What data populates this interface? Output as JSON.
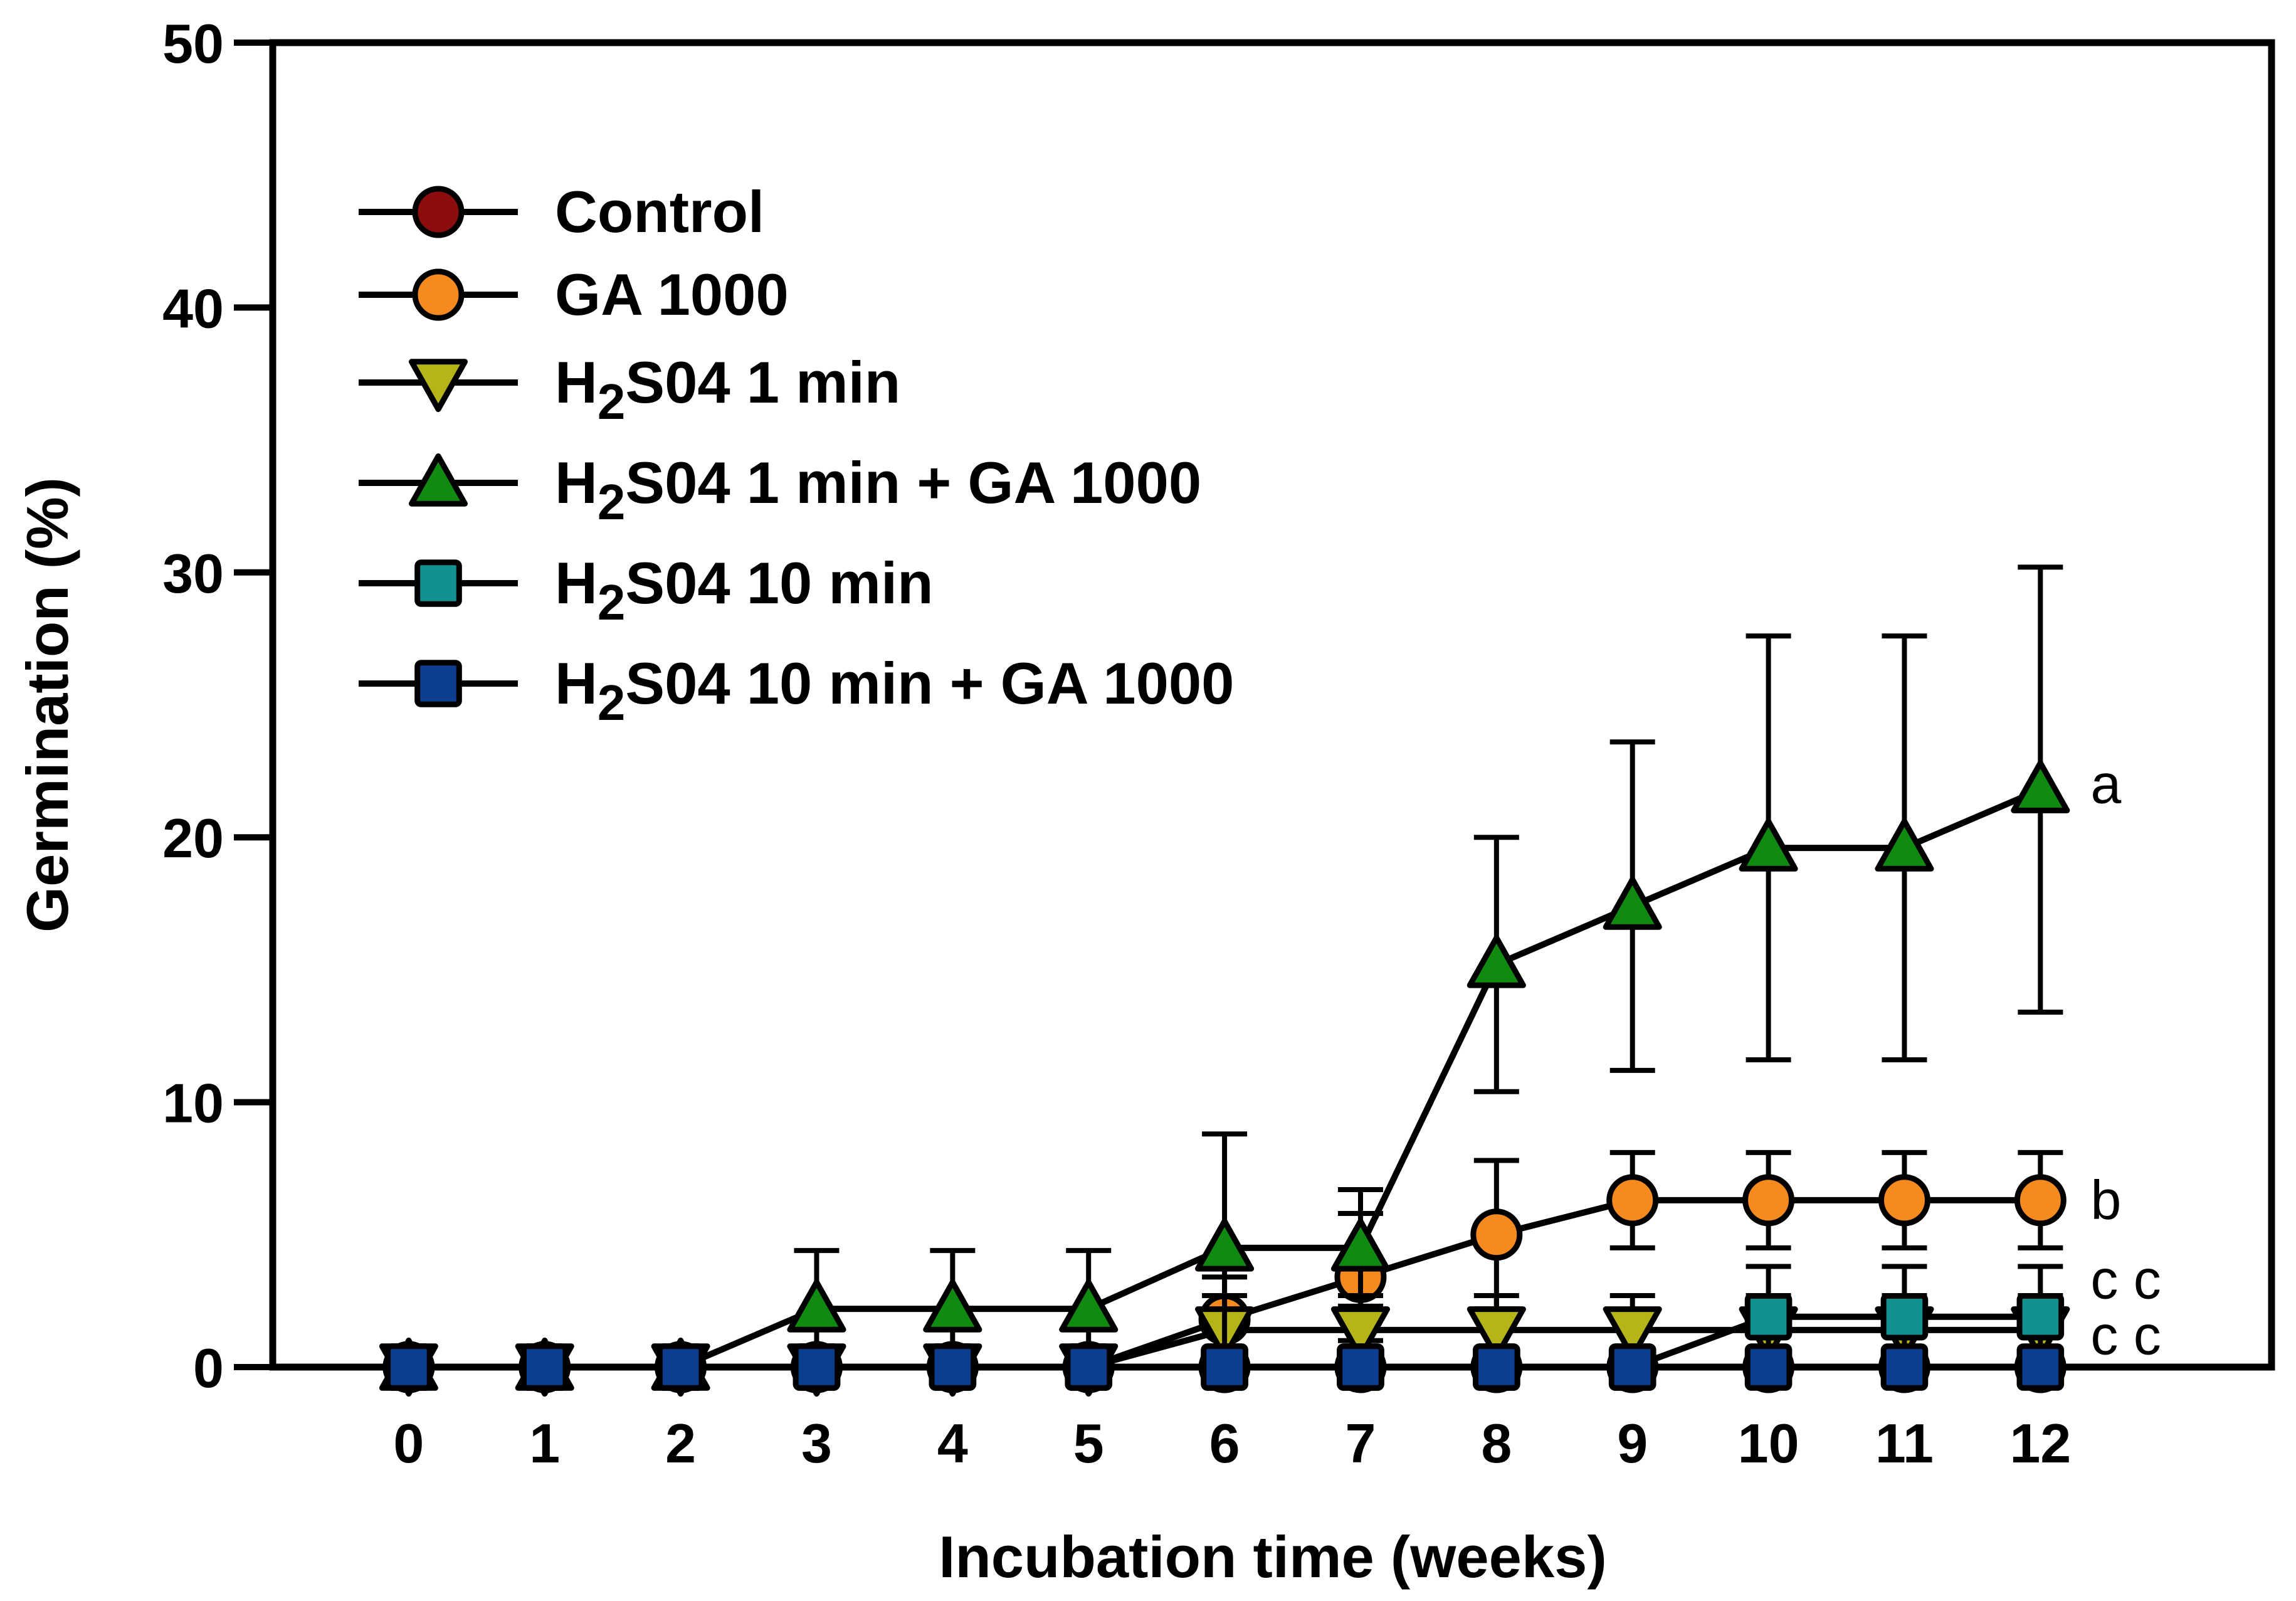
{
  "chart_data": {
    "type": "line",
    "title": "",
    "xlabel": "Incubation time (weeks)",
    "ylabel": "Germination (%)",
    "x": [
      0,
      1,
      2,
      3,
      4,
      5,
      6,
      7,
      8,
      9,
      10,
      11,
      12
    ],
    "xlim": [
      -1,
      13.7
    ],
    "ylim": [
      0,
      50
    ],
    "xticks": [
      "0",
      "1",
      "2",
      "3",
      "4",
      "5",
      "6",
      "7",
      "8",
      "9",
      "10",
      "11",
      "12"
    ],
    "yticks": [
      "0",
      "10",
      "20",
      "30",
      "40",
      "50"
    ],
    "grid": false,
    "legend_position": "top-left",
    "series": [
      {
        "name": "Control",
        "legend_main": "Control",
        "legend_sub": "",
        "legend_rest": "",
        "marker": "circle",
        "color": "#8b0d0d",
        "values": [
          0,
          0,
          0,
          0,
          0,
          0,
          0,
          0,
          0,
          0,
          0,
          0,
          0
        ],
        "errors": [
          0,
          0,
          0,
          0,
          0,
          0,
          0,
          0,
          0,
          0,
          0,
          0,
          0
        ]
      },
      {
        "name": "GA 1000",
        "legend_main": "GA 1000",
        "legend_sub": "",
        "legend_rest": "",
        "marker": "circle",
        "color": "#f58a1f",
        "values": [
          0,
          0,
          0,
          0,
          0,
          0,
          1.8,
          3.4,
          5.0,
          6.3,
          6.3,
          6.3,
          6.3
        ],
        "errors": [
          0,
          0,
          0,
          0,
          0,
          0,
          1.6,
          2.4,
          2.8,
          1.8,
          1.8,
          1.8,
          1.8
        ]
      },
      {
        "name": "H2S04 1 min",
        "legend_main": "H",
        "legend_sub": "2",
        "legend_rest": "S04 1 min",
        "marker": "triangle-down",
        "color": "#b5b51a",
        "values": [
          0,
          0,
          0,
          0,
          0,
          0,
          1.4,
          1.4,
          1.4,
          1.4,
          1.4,
          1.4,
          1.4
        ],
        "errors": [
          0,
          0,
          0,
          0,
          0,
          0,
          1.3,
          1.3,
          1.3,
          1.3,
          1.3,
          1.3,
          1.3
        ]
      },
      {
        "name": "H2S04 1 min + GA 1000",
        "legend_main": "H",
        "legend_sub": "2",
        "legend_rest": "S04 1 min + GA 1000",
        "marker": "triangle-up",
        "color": "#118a11",
        "values": [
          0,
          0,
          0,
          2.2,
          2.2,
          2.2,
          4.5,
          4.5,
          15.2,
          17.4,
          19.6,
          19.6,
          21.8
        ],
        "errors": [
          0,
          0,
          0,
          2.2,
          2.2,
          2.2,
          4.3,
          2.2,
          4.8,
          6.2,
          8.0,
          8.0,
          8.4
        ]
      },
      {
        "name": "H2S04 10 min",
        "legend_main": "H",
        "legend_sub": "2",
        "legend_rest": "S04 10 min",
        "marker": "square",
        "color": "#139090",
        "values": [
          0,
          0,
          0,
          0,
          0,
          0,
          0,
          0,
          0,
          0,
          1.9,
          1.9,
          1.9
        ],
        "errors": [
          0,
          0,
          0,
          0,
          0,
          0,
          0,
          0,
          0,
          0,
          1.9,
          1.9,
          1.9
        ]
      },
      {
        "name": "H2S04 10 min + GA 1000",
        "legend_main": "H",
        "legend_sub": "2",
        "legend_rest": "S04 10 min + GA 1000",
        "marker": "square",
        "color": "#0d3d8f",
        "values": [
          0,
          0,
          0,
          0,
          0,
          0,
          0,
          0,
          0,
          0,
          0,
          0,
          0
        ],
        "errors": [
          0,
          0,
          0,
          0,
          0,
          0,
          0,
          0,
          0,
          0,
          0,
          0,
          0
        ]
      }
    ],
    "annotations": [
      {
        "text": "a",
        "x": 12,
        "y": 22
      },
      {
        "text": "b",
        "x": 12,
        "y": 6.3
      },
      {
        "text": "c c",
        "x": 12,
        "y": 3.3
      },
      {
        "text": "c c",
        "x": 12,
        "y": 1.2
      }
    ]
  }
}
